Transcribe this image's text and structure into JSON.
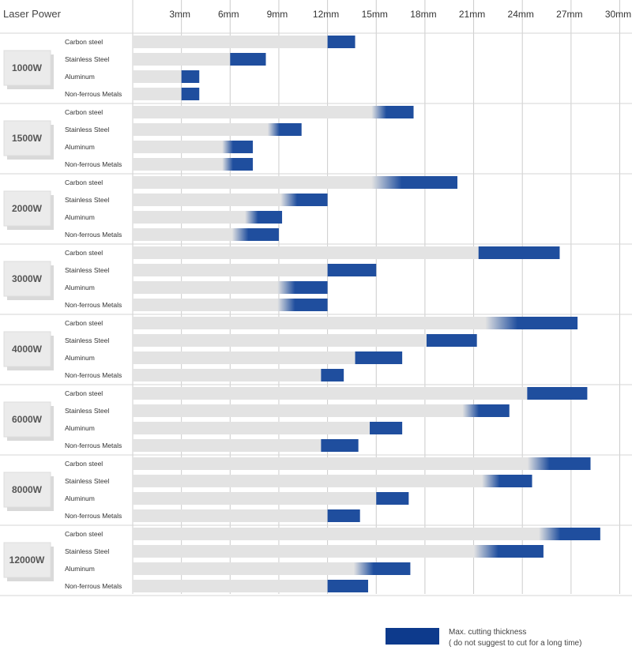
{
  "header": {
    "title": "Laser Power"
  },
  "legend": {
    "line1": "Max. cutting thickness",
    "line2": "( do not suggest to cut for a long time)",
    "color": "#0d3a8c"
  },
  "colors": {
    "bar_bg": "#e3e3e3",
    "bar_max": "#1f4e9e",
    "grid": "#cccccc",
    "power_box": "#ebebeb"
  },
  "chart_data": {
    "type": "bar",
    "orientation": "horizontal",
    "title": "",
    "x_unit": "mm",
    "xlim": [
      0,
      30
    ],
    "xticks": [
      3,
      6,
      9,
      12,
      15,
      18,
      21,
      24,
      27,
      30
    ],
    "xtick_labels": [
      "3mm",
      "6mm",
      "9mm",
      "12mm",
      "15mm",
      "18mm",
      "21mm",
      "24mm",
      "27mm",
      "30mm"
    ],
    "materials": [
      "Carbon steel",
      "Stainless Steel",
      "Aluminum",
      "Non-ferrous Metals"
    ],
    "groups": [
      {
        "power": "1000W",
        "rows": [
          {
            "material": "Carbon steel",
            "recommended": 12,
            "max": 13.7,
            "fade": false
          },
          {
            "material": "Stainless Steel",
            "recommended": 6,
            "max": 8.2,
            "fade": false
          },
          {
            "material": "Aluminum",
            "recommended": 3,
            "max": 4.1,
            "fade": false
          },
          {
            "material": "Non-ferrous Metals",
            "recommended": 3,
            "max": 4.1,
            "fade": false
          }
        ]
      },
      {
        "power": "1500W",
        "rows": [
          {
            "material": "Carbon steel",
            "recommended": 15.2,
            "max": 17.3,
            "fade": true
          },
          {
            "material": "Stainless Steel",
            "recommended": 8.8,
            "max": 10.4,
            "fade": true
          },
          {
            "material": "Aluminum",
            "recommended": 6,
            "max": 7.4,
            "fade": true
          },
          {
            "material": "Non-ferrous Metals",
            "recommended": 6,
            "max": 7.4,
            "fade": true
          }
        ]
      },
      {
        "power": "2000W",
        "rows": [
          {
            "material": "Carbon steel",
            "recommended": 15.2,
            "max": 20,
            "fade": true
          },
          {
            "material": "Stainless Steel",
            "recommended": 9.6,
            "max": 12,
            "fade": true
          },
          {
            "material": "Aluminum",
            "recommended": 7.4,
            "max": 9.2,
            "fade": true
          },
          {
            "material": "Non-ferrous Metals",
            "recommended": 6.6,
            "max": 9,
            "fade": true
          }
        ]
      },
      {
        "power": "3000W",
        "rows": [
          {
            "material": "Carbon steel",
            "recommended": 21.3,
            "max": 26.3,
            "fade": false
          },
          {
            "material": "Stainless Steel",
            "recommended": 12,
            "max": 15,
            "fade": false
          },
          {
            "material": "Aluminum",
            "recommended": 9.4,
            "max": 12,
            "fade": true
          },
          {
            "material": "Non-ferrous Metals",
            "recommended": 9.4,
            "max": 12,
            "fade": true
          }
        ]
      },
      {
        "power": "4000W",
        "rows": [
          {
            "material": "Carbon steel",
            "recommended": 22.2,
            "max": 27.4,
            "fade": true
          },
          {
            "material": "Stainless Steel",
            "recommended": 18.1,
            "max": 21.2,
            "fade": false
          },
          {
            "material": "Aluminum",
            "recommended": 13.7,
            "max": 16.6,
            "fade": false
          },
          {
            "material": "Non-ferrous Metals",
            "recommended": 11.6,
            "max": 13,
            "fade": false
          }
        ]
      },
      {
        "power": "6000W",
        "rows": [
          {
            "material": "Carbon steel",
            "recommended": 24.3,
            "max": 28,
            "fade": false
          },
          {
            "material": "Stainless Steel",
            "recommended": 20.8,
            "max": 23.2,
            "fade": true
          },
          {
            "material": "Aluminum",
            "recommended": 14.6,
            "max": 16.6,
            "fade": false
          },
          {
            "material": "Non-ferrous Metals",
            "recommended": 11.6,
            "max": 13.9,
            "fade": false
          }
        ]
      },
      {
        "power": "8000W",
        "rows": [
          {
            "material": "Carbon steel",
            "recommended": 24.8,
            "max": 28.2,
            "fade": true
          },
          {
            "material": "Stainless Steel",
            "recommended": 22,
            "max": 24.6,
            "fade": true
          },
          {
            "material": "Aluminum",
            "recommended": 15,
            "max": 17,
            "fade": false
          },
          {
            "material": "Non-ferrous Metals",
            "recommended": 12,
            "max": 14,
            "fade": false
          }
        ]
      },
      {
        "power": "12000W",
        "rows": [
          {
            "material": "Carbon steel",
            "recommended": 25.5,
            "max": 28.8,
            "fade": true
          },
          {
            "material": "Stainless Steel",
            "recommended": 21.5,
            "max": 25.3,
            "fade": true
          },
          {
            "material": "Aluminum",
            "recommended": 14.1,
            "max": 17.1,
            "fade": true
          },
          {
            "material": "Non-ferrous Metals",
            "recommended": 12,
            "max": 14.5,
            "fade": false
          }
        ]
      }
    ]
  }
}
